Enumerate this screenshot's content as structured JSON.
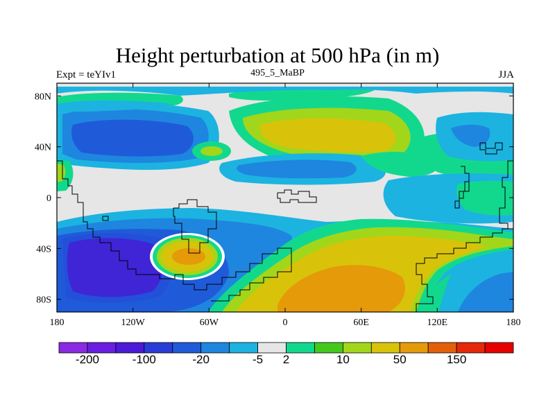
{
  "title": "Height perturbation at 500 hPa (in m)",
  "left_label": "Expt = teYIv1",
  "center_label": "495_5_MaBP",
  "right_label": "JJA",
  "colors": {
    "background": "#ffffff",
    "neutral": "#e6e6e6",
    "coastline": "#000000"
  },
  "chart_data": {
    "type": "heatmap",
    "projection": "cylindrical equidistant",
    "xlim": [
      -180,
      180
    ],
    "ylim": [
      -90,
      90
    ],
    "x_ticks": [
      {
        "value": -180,
        "label": "180"
      },
      {
        "value": -120,
        "label": "120W"
      },
      {
        "value": -60,
        "label": "60W"
      },
      {
        "value": 0,
        "label": "0"
      },
      {
        "value": 60,
        "label": "60E"
      },
      {
        "value": 120,
        "label": "120E"
      },
      {
        "value": 180,
        "label": "180"
      }
    ],
    "y_ticks": [
      {
        "value": 80,
        "label": "80N"
      },
      {
        "value": 40,
        "label": "40N"
      },
      {
        "value": 0,
        "label": "0"
      },
      {
        "value": -40,
        "label": "40S"
      },
      {
        "value": -80,
        "label": "80S"
      }
    ],
    "colorbar": {
      "colors": [
        "#8a2be2",
        "#6a1ee0",
        "#4b1ad6",
        "#2a3cd8",
        "#1f5bd9",
        "#1e86df",
        "#1cb3e0",
        "#e6e6e6",
        "#12d88e",
        "#44c81e",
        "#a2d61a",
        "#d8c30a",
        "#e59a0a",
        "#e2600a",
        "#e4280a",
        "#e60000"
      ],
      "labels": [
        {
          "index": 1,
          "text": "-200"
        },
        {
          "index": 3,
          "text": "-100"
        },
        {
          "index": 5,
          "text": "-20"
        },
        {
          "index": 7,
          "text": "-5"
        },
        {
          "index": 8,
          "text": "2"
        },
        {
          "index": 10,
          "text": "10"
        },
        {
          "index": 12,
          "text": "50"
        },
        {
          "index": 14,
          "text": "150"
        }
      ]
    },
    "regions": [
      {
        "name": "north-pacific-low",
        "lon": -120,
        "lat": 48,
        "level": -20
      },
      {
        "name": "north-atlantic-high",
        "lon": 60,
        "lat": 45,
        "level": 50
      },
      {
        "name": "south-pacific-low",
        "lon": -140,
        "lat": -60,
        "level": -100
      },
      {
        "name": "south-atlantic-high",
        "lon": -70,
        "lat": -42,
        "level": 50
      },
      {
        "name": "southern-indian-high",
        "lon": 40,
        "lat": -60,
        "level": 50
      }
    ]
  }
}
